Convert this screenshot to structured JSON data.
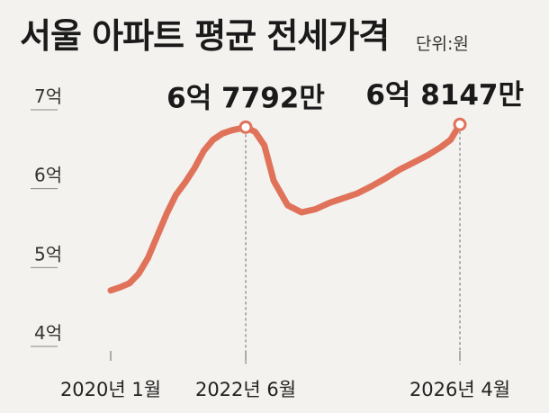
{
  "title": "서울 아파트 평균 전세가격",
  "unit": "단위:원",
  "chart_data": {
    "type": "line",
    "color": "#e0725a",
    "ylim": [
      4,
      7
    ],
    "y_ticks": [
      {
        "value": 4,
        "label": "4억"
      },
      {
        "value": 5,
        "label": "5억"
      },
      {
        "value": 6,
        "label": "6억"
      },
      {
        "value": 7,
        "label": "7억"
      }
    ],
    "x_ticks": [
      {
        "x": "2020-01",
        "label": "2020년 1월"
      },
      {
        "x": "2022-06",
        "label": "2022년 6월"
      },
      {
        "x": "2026-04",
        "label": "2026년 4월"
      }
    ],
    "callouts": [
      {
        "x": "2022-06",
        "y": 6.7792,
        "label": "6억 7792만"
      },
      {
        "x": "2026-04",
        "y": 6.8147,
        "label": "6억 8147만"
      }
    ],
    "series": [
      {
        "points": [
          [
            "2020-01",
            4.71
          ],
          [
            "2020-03",
            4.75
          ],
          [
            "2020-05",
            4.8
          ],
          [
            "2020-07",
            4.92
          ],
          [
            "2020-09",
            5.12
          ],
          [
            "2020-11",
            5.4
          ],
          [
            "2021-01",
            5.68
          ],
          [
            "2021-03",
            5.92
          ],
          [
            "2021-05",
            6.08
          ],
          [
            "2021-07",
            6.26
          ],
          [
            "2021-09",
            6.48
          ],
          [
            "2021-11",
            6.62
          ],
          [
            "2022-01",
            6.7
          ],
          [
            "2022-03",
            6.74
          ],
          [
            "2022-06",
            6.7792
          ],
          [
            "2022-08",
            6.72
          ],
          [
            "2022-10",
            6.55
          ],
          [
            "2022-12",
            6.1
          ],
          [
            "2023-03",
            5.79
          ],
          [
            "2023-06",
            5.7
          ],
          [
            "2023-09",
            5.74
          ],
          [
            "2023-12",
            5.82
          ],
          [
            "2024-03",
            5.88
          ],
          [
            "2024-06",
            5.94
          ],
          [
            "2024-09",
            6.03
          ],
          [
            "2024-12",
            6.13
          ],
          [
            "2025-03",
            6.24
          ],
          [
            "2025-06",
            6.33
          ],
          [
            "2025-09",
            6.42
          ],
          [
            "2025-12",
            6.53
          ],
          [
            "2026-02",
            6.62
          ],
          [
            "2026-04",
            6.8147
          ]
        ]
      }
    ]
  }
}
